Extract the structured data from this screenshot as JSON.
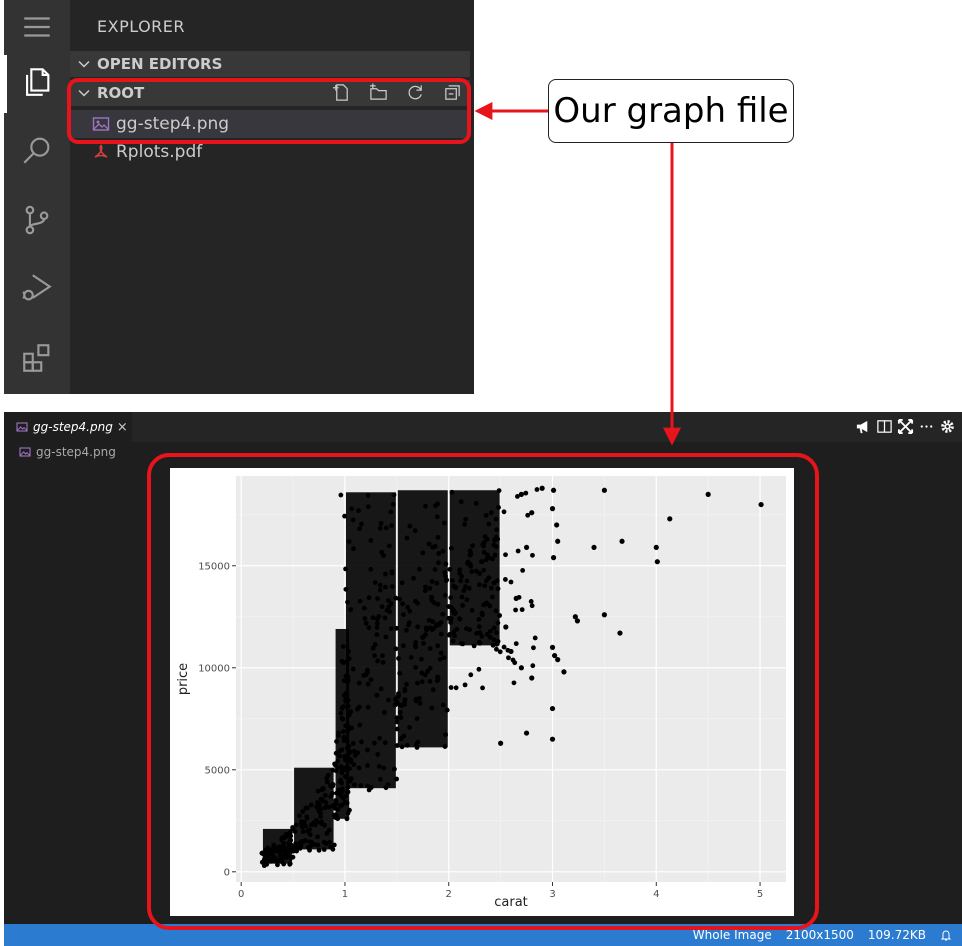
{
  "explorer": {
    "title": "EXPLORER",
    "open_editors_label": "OPEN EDITORS",
    "root_label": "ROOT",
    "files": [
      {
        "name": "gg-step4.png",
        "icon": "image-file-icon"
      },
      {
        "name": "Rplots.pdf",
        "icon": "pdf-file-icon"
      }
    ],
    "activity_icons": [
      "menu-icon",
      "files-icon",
      "search-icon",
      "source-control-icon",
      "run-debug-icon",
      "extensions-icon"
    ],
    "root_actions": [
      "new-file-icon",
      "new-folder-icon",
      "refresh-icon",
      "collapse-all-icon"
    ]
  },
  "annotation": {
    "callout_text": "Our graph file",
    "highlight_color": "#e8141c"
  },
  "viewer": {
    "tab_label": "gg-step4.png",
    "tab_close": "×",
    "breadcrumb": "gg-step4.png",
    "status": {
      "mode": "Whole Image",
      "dimensions": "2100x1500",
      "size": "109.72KB"
    }
  },
  "chart_data": {
    "type": "scatter",
    "xlabel": "carat",
    "ylabel": "price",
    "xlim": [
      -0.05,
      5.25
    ],
    "ylim": [
      -500,
      19400
    ],
    "xticks": [
      0,
      1,
      2,
      3,
      4,
      5
    ],
    "yticks": [
      0,
      5000,
      10000,
      15000
    ],
    "ytick_labels": [
      "0",
      "5000",
      "10000",
      "15000"
    ],
    "grid": true,
    "panel_color": "#ebebeb",
    "point_color": "#000000",
    "outlier_points": [
      [
        3.01,
        18700
      ],
      [
        3.0,
        17800
      ],
      [
        3.04,
        17000
      ],
      [
        3.05,
        16200
      ],
      [
        3.01,
        15400
      ],
      [
        3.5,
        18700
      ],
      [
        3.4,
        15900
      ],
      [
        3.67,
        16200
      ],
      [
        4.0,
        15900
      ],
      [
        4.01,
        15200
      ],
      [
        4.13,
        17300
      ],
      [
        4.5,
        18500
      ],
      [
        5.01,
        18000
      ],
      [
        3.22,
        12500
      ],
      [
        3.24,
        12300
      ],
      [
        3.5,
        12600
      ],
      [
        3.65,
        11700
      ],
      [
        3.0,
        11000
      ],
      [
        3.02,
        10600
      ],
      [
        3.05,
        10400
      ],
      [
        3.11,
        9800
      ],
      [
        3.0,
        8000
      ],
      [
        3.0,
        6500
      ],
      [
        2.75,
        6800
      ],
      [
        2.5,
        6300
      ],
      [
        2.8,
        9500
      ],
      [
        2.7,
        10000
      ],
      [
        2.6,
        10800
      ],
      [
        2.4,
        11500
      ],
      [
        2.9,
        18800
      ],
      [
        2.8,
        17600
      ],
      [
        2.7,
        18500
      ],
      [
        2.75,
        15900
      ],
      [
        2.55,
        12000
      ],
      [
        2.65,
        13400
      ]
    ],
    "dense_bands": [
      {
        "x_from": 0.2,
        "x_to": 0.5,
        "y_from": 300,
        "y_to": 2200
      },
      {
        "x_from": 0.5,
        "x_to": 0.9,
        "y_from": 1000,
        "y_to": 5200
      },
      {
        "x_from": 0.9,
        "x_to": 1.05,
        "y_from": 2500,
        "y_to": 12000
      },
      {
        "x_from": 1.0,
        "x_to": 1.5,
        "y_from": 4000,
        "y_to": 18700
      },
      {
        "x_from": 1.5,
        "x_to": 2.0,
        "y_from": 6000,
        "y_to": 18800
      },
      {
        "x_from": 2.0,
        "x_to": 2.5,
        "y_from": 11000,
        "y_to": 18800
      }
    ]
  }
}
